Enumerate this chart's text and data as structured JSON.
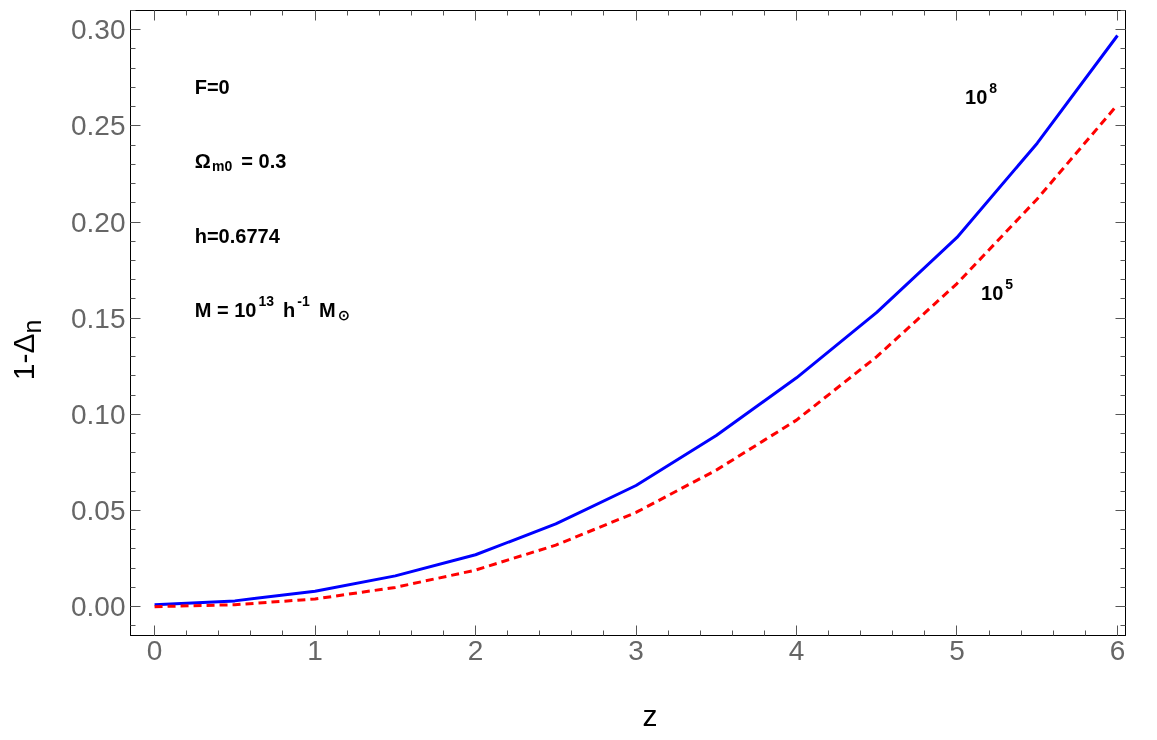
{
  "chart_data": {
    "type": "line",
    "xlabel": "z",
    "ylabel": "1-Δ$_{n}$",
    "x": [
      0,
      0.5,
      1,
      1.5,
      2,
      2.5,
      3,
      3.5,
      4,
      4.5,
      5,
      5.5,
      6
    ],
    "series": [
      {
        "color": "#0000ff",
        "line_style": "solid",
        "values": [
          0.001,
          0.003,
          0.008,
          0.016,
          0.027,
          0.043,
          0.063,
          0.089,
          0.119,
          0.153,
          0.192,
          0.241,
          0.297
        ]
      },
      {
        "color": "#ff0000",
        "line_style": "dashed",
        "values": [
          0.0,
          0.001,
          0.004,
          0.01,
          0.019,
          0.032,
          0.049,
          0.071,
          0.097,
          0.13,
          0.168,
          0.212,
          0.261
        ]
      }
    ],
    "xlim": [
      -0.15,
      6.05
    ],
    "ylim": [
      -0.015,
      0.31
    ],
    "xticks": [
      0,
      1,
      2,
      3,
      4,
      5,
      6
    ],
    "yticks": [
      {
        "value": 0,
        "label": "0.00"
      },
      0.05,
      {
        "value": 0.1,
        "label": "0.10"
      },
      0.15,
      {
        "value": 0.2,
        "label": "0.20"
      },
      0.25,
      {
        "value": 0.3,
        "label": "0.30"
      }
    ],
    "grid": false,
    "annotations": [
      "F=0",
      "Ω$_{m0}$ = 0.3",
      "h=0.6774",
      "M = 10$^{13}$ h$^{-1}$ M$_{⊙}$",
      "10$^{8}$",
      "10$^{5}$"
    ]
  }
}
